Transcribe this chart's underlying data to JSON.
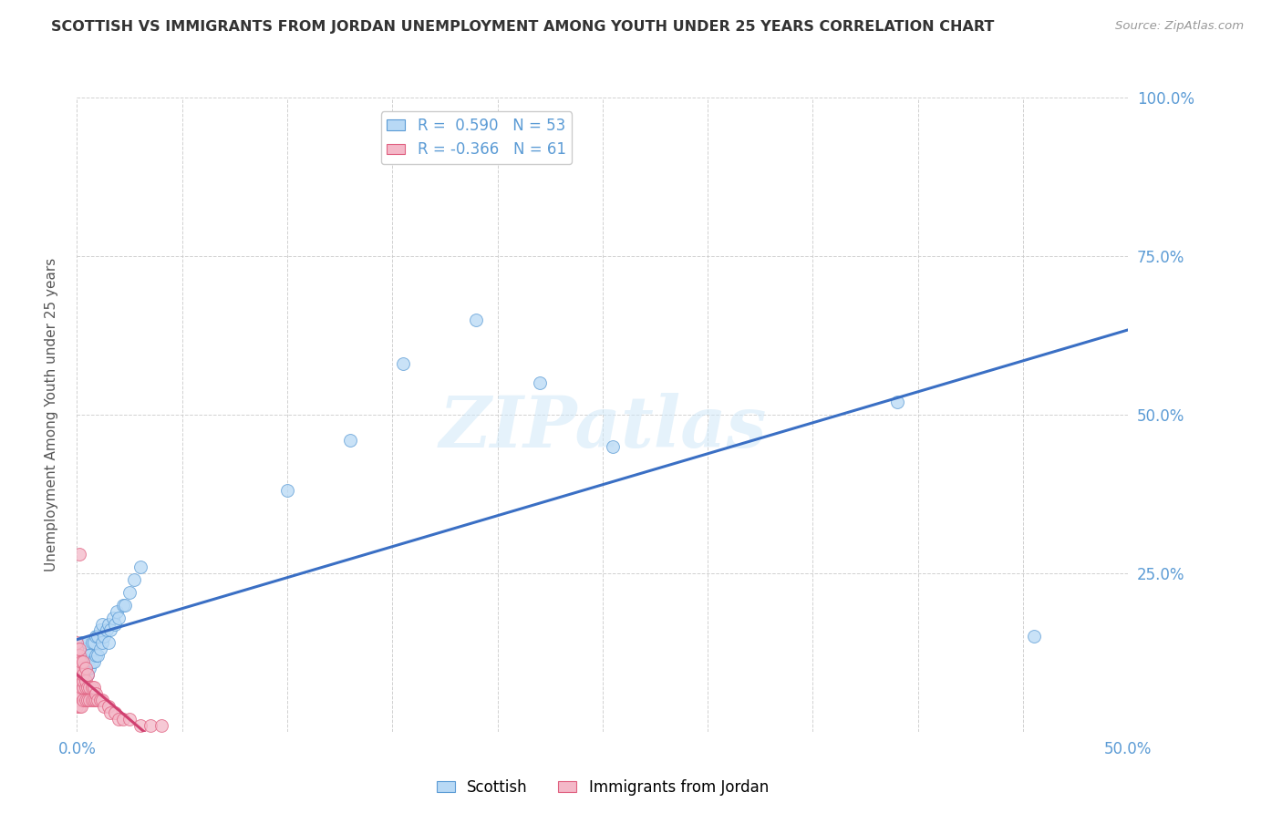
{
  "title": "SCOTTISH VS IMMIGRANTS FROM JORDAN UNEMPLOYMENT AMONG YOUTH UNDER 25 YEARS CORRELATION CHART",
  "source": "Source: ZipAtlas.com",
  "ylabel": "Unemployment Among Youth under 25 years",
  "xlim": [
    0.0,
    0.5
  ],
  "ylim": [
    0.0,
    1.0
  ],
  "ytick_labels": [
    "",
    "25.0%",
    "50.0%",
    "75.0%",
    "100.0%"
  ],
  "yticks": [
    0.0,
    0.25,
    0.5,
    0.75,
    1.0
  ],
  "watermark": "ZIPatlas",
  "legend_R_blue": "R =  0.590",
  "legend_N_blue": "N = 53",
  "legend_R_pink": "R = -0.366",
  "legend_N_pink": "N = 61",
  "blue_fill": "#b8d9f5",
  "blue_edge": "#5b9bd5",
  "pink_fill": "#f4b8c8",
  "pink_edge": "#e06080",
  "blue_line": "#3a6fc4",
  "pink_line": "#d04070",
  "axis_label_color": "#5b9bd5",
  "scottish_x": [
    0.0,
    0.001,
    0.001,
    0.001,
    0.001,
    0.002,
    0.002,
    0.002,
    0.002,
    0.003,
    0.003,
    0.003,
    0.004,
    0.004,
    0.005,
    0.005,
    0.005,
    0.006,
    0.006,
    0.007,
    0.007,
    0.008,
    0.008,
    0.009,
    0.009,
    0.01,
    0.01,
    0.011,
    0.011,
    0.012,
    0.012,
    0.013,
    0.014,
    0.015,
    0.015,
    0.016,
    0.017,
    0.018,
    0.019,
    0.02,
    0.022,
    0.023,
    0.025,
    0.027,
    0.03,
    0.1,
    0.13,
    0.155,
    0.19,
    0.22,
    0.255,
    0.39,
    0.455
  ],
  "scottish_y": [
    0.05,
    0.07,
    0.09,
    0.1,
    0.12,
    0.08,
    0.1,
    0.12,
    0.14,
    0.09,
    0.11,
    0.13,
    0.1,
    0.13,
    0.09,
    0.11,
    0.14,
    0.1,
    0.12,
    0.11,
    0.14,
    0.11,
    0.14,
    0.12,
    0.15,
    0.12,
    0.15,
    0.13,
    0.16,
    0.14,
    0.17,
    0.15,
    0.16,
    0.14,
    0.17,
    0.16,
    0.18,
    0.17,
    0.19,
    0.18,
    0.2,
    0.2,
    0.22,
    0.24,
    0.26,
    0.38,
    0.46,
    0.58,
    0.65,
    0.55,
    0.45,
    0.52,
    0.15
  ],
  "jordan_x": [
    0.0,
    0.0,
    0.0,
    0.0,
    0.0,
    0.0,
    0.0,
    0.0,
    0.0,
    0.0,
    0.0,
    0.001,
    0.001,
    0.001,
    0.001,
    0.001,
    0.001,
    0.001,
    0.001,
    0.001,
    0.001,
    0.002,
    0.002,
    0.002,
    0.002,
    0.002,
    0.002,
    0.002,
    0.003,
    0.003,
    0.003,
    0.003,
    0.003,
    0.004,
    0.004,
    0.004,
    0.004,
    0.005,
    0.005,
    0.005,
    0.006,
    0.006,
    0.007,
    0.007,
    0.008,
    0.008,
    0.009,
    0.009,
    0.01,
    0.011,
    0.012,
    0.013,
    0.015,
    0.016,
    0.018,
    0.02,
    0.022,
    0.025,
    0.03,
    0.035,
    0.04
  ],
  "jordan_y": [
    0.04,
    0.05,
    0.06,
    0.07,
    0.08,
    0.09,
    0.1,
    0.11,
    0.12,
    0.13,
    0.14,
    0.04,
    0.06,
    0.07,
    0.08,
    0.09,
    0.1,
    0.11,
    0.12,
    0.13,
    0.28,
    0.04,
    0.06,
    0.07,
    0.08,
    0.09,
    0.1,
    0.11,
    0.05,
    0.07,
    0.08,
    0.09,
    0.11,
    0.05,
    0.07,
    0.08,
    0.1,
    0.05,
    0.07,
    0.09,
    0.05,
    0.07,
    0.05,
    0.07,
    0.05,
    0.07,
    0.05,
    0.06,
    0.05,
    0.05,
    0.05,
    0.04,
    0.04,
    0.03,
    0.03,
    0.02,
    0.02,
    0.02,
    0.01,
    0.01,
    0.01
  ]
}
